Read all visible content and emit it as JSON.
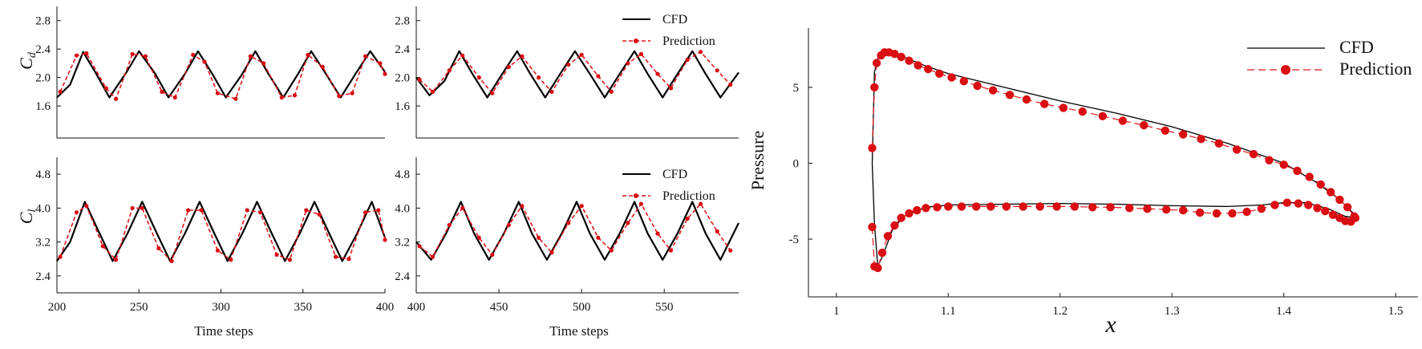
{
  "chart_data": [
    {
      "id": "cd-a",
      "type": "line",
      "ylabel_main": "C",
      "ylabel_sub": "d",
      "xlim": [
        200,
        400
      ],
      "ylim": [
        1.15,
        3.0
      ],
      "yticks": [
        "1.6",
        "2.0",
        "2.4",
        "2.8"
      ],
      "xticks": [],
      "xlabel": "",
      "series": [
        {
          "name": "CFD",
          "x": [
            200,
            208,
            216,
            224,
            232,
            242,
            250,
            260,
            268,
            278,
            286,
            295,
            303,
            313,
            321,
            329,
            338,
            347,
            355,
            364,
            373,
            382,
            391,
            400
          ],
          "y": [
            1.72,
            1.9,
            2.36,
            2.05,
            1.72,
            2.06,
            2.37,
            2.05,
            1.72,
            2.05,
            2.37,
            2.04,
            1.72,
            2.05,
            2.37,
            2.05,
            1.72,
            2.05,
            2.37,
            2.05,
            1.72,
            2.05,
            2.37,
            2.08
          ]
        },
        {
          "name": "Prediction",
          "x": [
            202,
            212,
            218,
            230,
            236,
            246,
            254,
            264,
            272,
            283,
            290,
            298,
            309,
            318,
            326,
            337,
            345,
            353,
            362,
            372,
            380,
            388,
            397,
            400
          ],
          "y": [
            1.8,
            2.31,
            2.34,
            1.85,
            1.7,
            2.33,
            2.3,
            1.8,
            1.72,
            2.32,
            2.22,
            1.78,
            1.7,
            2.3,
            2.2,
            1.72,
            1.75,
            2.32,
            2.15,
            1.74,
            1.78,
            2.3,
            2.2,
            2.05
          ]
        }
      ]
    },
    {
      "id": "cd-b",
      "type": "line",
      "xlim": [
        400,
        595
      ],
      "ylim": [
        1.15,
        3.0
      ],
      "yticks": [
        "1.6",
        "2.0",
        "2.4",
        "2.8"
      ],
      "xticks": [],
      "xlabel": "",
      "series": [
        {
          "name": "CFD",
          "x": [
            400,
            408,
            417,
            426,
            434,
            443,
            452,
            461,
            469,
            478,
            487,
            496,
            505,
            514,
            523,
            532,
            540,
            549,
            558,
            567,
            575,
            584,
            595
          ],
          "y": [
            2.0,
            1.75,
            1.95,
            2.37,
            2.05,
            1.72,
            2.05,
            2.37,
            2.05,
            1.72,
            2.05,
            2.37,
            2.05,
            1.72,
            2.05,
            2.37,
            2.05,
            1.72,
            2.05,
            2.37,
            2.05,
            1.72,
            2.07
          ]
        },
        {
          "name": "Prediction",
          "x": [
            402,
            410,
            420,
            428,
            438,
            446,
            456,
            464,
            474,
            482,
            492,
            500,
            510,
            518,
            528,
            536,
            546,
            554,
            564,
            572,
            582,
            590
          ],
          "y": [
            1.97,
            1.8,
            2.1,
            2.31,
            2.0,
            1.78,
            2.15,
            2.3,
            2.0,
            1.8,
            2.18,
            2.32,
            2.02,
            1.8,
            2.2,
            2.33,
            2.05,
            1.85,
            2.25,
            2.36,
            2.1,
            1.9
          ]
        }
      ]
    },
    {
      "id": "cl-a",
      "type": "line",
      "ylabel_main": "C",
      "ylabel_sub": "l",
      "xlim": [
        200,
        400
      ],
      "ylim": [
        2.0,
        5.2
      ],
      "yticks": [
        "2.4",
        "3.2",
        "4.0",
        "4.8"
      ],
      "xticks": [
        "200",
        "250",
        "300",
        "350",
        "400"
      ],
      "xlabel": "Time steps",
      "series": [
        {
          "name": "CFD",
          "x": [
            200,
            208,
            217,
            226,
            234,
            243,
            252,
            261,
            269,
            278,
            287,
            296,
            304,
            313,
            322,
            331,
            339,
            348,
            357,
            366,
            374,
            383,
            392,
            400
          ],
          "y": [
            2.75,
            3.2,
            4.15,
            3.4,
            2.75,
            3.4,
            4.15,
            3.4,
            2.75,
            3.4,
            4.15,
            3.4,
            2.75,
            3.4,
            4.15,
            3.4,
            2.75,
            3.4,
            4.15,
            3.4,
            2.75,
            3.4,
            4.15,
            3.3
          ]
        },
        {
          "name": "Prediction",
          "x": [
            202,
            212,
            218,
            228,
            236,
            246,
            252,
            262,
            270,
            280,
            288,
            298,
            306,
            316,
            324,
            334,
            342,
            352,
            360,
            370,
            378,
            388,
            396,
            400
          ],
          "y": [
            2.85,
            3.9,
            4.05,
            3.1,
            2.78,
            4.0,
            4.0,
            3.05,
            2.75,
            3.95,
            3.95,
            3.0,
            2.78,
            3.95,
            3.9,
            2.9,
            2.78,
            3.95,
            3.85,
            2.85,
            2.8,
            3.9,
            3.95,
            3.25
          ]
        }
      ]
    },
    {
      "id": "cl-b",
      "type": "line",
      "xlim": [
        400,
        595
      ],
      "ylim": [
        2.0,
        5.2
      ],
      "yticks": [
        "2.4",
        "3.2",
        "4.0",
        "4.8"
      ],
      "xticks": [
        "400",
        "450",
        "500",
        "550"
      ],
      "xlabel": "Time steps",
      "series": [
        {
          "name": "CFD",
          "x": [
            400,
            409,
            418,
            427,
            435,
            444,
            453,
            462,
            470,
            479,
            488,
            497,
            505,
            514,
            523,
            532,
            540,
            549,
            558,
            567,
            575,
            584,
            595
          ],
          "y": [
            3.2,
            2.78,
            3.4,
            4.15,
            3.4,
            2.78,
            3.4,
            4.15,
            3.4,
            2.78,
            3.4,
            4.15,
            3.4,
            2.78,
            3.4,
            4.15,
            3.4,
            2.78,
            3.4,
            4.15,
            3.4,
            2.78,
            3.65
          ]
        },
        {
          "name": "Prediction",
          "x": [
            402,
            410,
            420,
            428,
            438,
            446,
            456,
            464,
            474,
            482,
            492,
            500,
            510,
            518,
            528,
            536,
            546,
            554,
            564,
            572,
            582,
            590
          ],
          "y": [
            3.1,
            2.85,
            3.6,
            4.0,
            3.3,
            2.9,
            3.6,
            4.05,
            3.3,
            2.95,
            3.65,
            4.05,
            3.3,
            3.0,
            3.65,
            4.1,
            3.4,
            3.0,
            3.75,
            4.1,
            3.45,
            3.0
          ]
        }
      ]
    },
    {
      "id": "pressure",
      "type": "line",
      "xlabel": "x",
      "ylabel": "Pressure",
      "xlim": [
        0.975,
        1.52
      ],
      "ylim": [
        -8.8,
        8.9
      ],
      "xticks": [
        "1",
        "1.1",
        "1.2",
        "1.3",
        "1.4",
        "1.5"
      ],
      "yticks": [
        "-5",
        "0",
        "5"
      ],
      "series": [
        {
          "name": "CFD",
          "upper": {
            "x": [
              1.032,
              1.034,
              1.037,
              1.042,
              1.05,
              1.06,
              1.08,
              1.1,
              1.15,
              1.2,
              1.25,
              1.3,
              1.35,
              1.4,
              1.43,
              1.45,
              1.465
            ],
            "y": [
              0,
              6.0,
              6.9,
              7.3,
              7.25,
              7.0,
              6.4,
              5.9,
              5.0,
              4.1,
              3.3,
              2.4,
              1.3,
              0,
              -1.3,
              -2.4,
              -3.5
            ]
          },
          "lower": {
            "x": [
              1.032,
              1.034,
              1.037,
              1.042,
              1.05,
              1.06,
              1.08,
              1.1,
              1.15,
              1.2,
              1.25,
              1.3,
              1.35,
              1.38,
              1.4,
              1.42,
              1.44,
              1.455,
              1.465
            ],
            "y": [
              0,
              -4.0,
              -6.8,
              -6.0,
              -4.4,
              -3.5,
              -2.9,
              -2.75,
              -2.7,
              -2.65,
              -2.7,
              -2.8,
              -2.85,
              -2.75,
              -2.6,
              -2.6,
              -3.0,
              -3.5,
              -3.6
            ]
          }
        },
        {
          "name": "Prediction",
          "upper": {
            "x": [
              1.032,
              1.034,
              1.036,
              1.04,
              1.043,
              1.047,
              1.052,
              1.058,
              1.065,
              1.073,
              1.082,
              1.092,
              1.103,
              1.114,
              1.126,
              1.14,
              1.155,
              1.17,
              1.186,
              1.203,
              1.22,
              1.238,
              1.256,
              1.275,
              1.294,
              1.31,
              1.326,
              1.342,
              1.358,
              1.373,
              1.387,
              1.4,
              1.412,
              1.423,
              1.433,
              1.442,
              1.45,
              1.457,
              1.463
            ],
            "y": [
              1.0,
              5.0,
              6.6,
              7.1,
              7.3,
              7.3,
              7.2,
              7.0,
              6.75,
              6.45,
              6.2,
              5.9,
              5.65,
              5.4,
              5.1,
              4.8,
              4.5,
              4.2,
              3.9,
              3.65,
              3.4,
              3.1,
              2.8,
              2.5,
              2.15,
              1.9,
              1.6,
              1.3,
              0.9,
              0.6,
              0.2,
              -0.1,
              -0.5,
              -0.9,
              -1.4,
              -1.9,
              -2.4,
              -2.9,
              -3.5
            ]
          },
          "lower": {
            "x": [
              1.032,
              1.034,
              1.037,
              1.041,
              1.046,
              1.052,
              1.058,
              1.065,
              1.072,
              1.08,
              1.09,
              1.1,
              1.112,
              1.125,
              1.138,
              1.152,
              1.167,
              1.182,
              1.197,
              1.213,
              1.229,
              1.245,
              1.262,
              1.278,
              1.295,
              1.31,
              1.325,
              1.34,
              1.354,
              1.367,
              1.38,
              1.392,
              1.403,
              1.413,
              1.422,
              1.43,
              1.437,
              1.444,
              1.45,
              1.455,
              1.46,
              1.464
            ],
            "y": [
              -4.2,
              -6.8,
              -6.9,
              -5.9,
              -4.8,
              -4.1,
              -3.6,
              -3.3,
              -3.1,
              -2.95,
              -2.9,
              -2.85,
              -2.85,
              -2.85,
              -2.85,
              -2.85,
              -2.85,
              -2.85,
              -2.85,
              -2.85,
              -2.9,
              -2.9,
              -2.95,
              -3.0,
              -3.05,
              -3.1,
              -3.25,
              -3.3,
              -3.3,
              -3.2,
              -3.0,
              -2.75,
              -2.6,
              -2.65,
              -2.75,
              -2.95,
              -3.15,
              -3.4,
              -3.6,
              -3.8,
              -3.85,
              -3.6
            ]
          }
        }
      ]
    }
  ],
  "legend": {
    "cfd": "CFD",
    "prediction": "Prediction"
  },
  "colors": {
    "cfd": "#000000",
    "prediction": "#e0161b",
    "marker_fill": "#d90d12"
  }
}
